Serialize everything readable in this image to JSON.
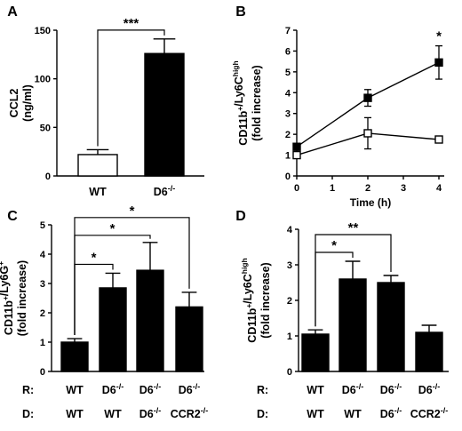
{
  "chart_data": [
    {
      "panel": "A",
      "type": "bar",
      "ylabel": "CCL2 (ng/ml)",
      "ylim": [
        0,
        150
      ],
      "yticks": [
        "0",
        "50",
        "100",
        "150"
      ],
      "categories": [
        "WT",
        "D6-/-"
      ],
      "values": [
        22,
        126
      ],
      "errors": [
        5,
        15
      ],
      "bar_colors": [
        "#ffffff",
        "#000000"
      ],
      "significance": [
        {
          "from": 0,
          "to": 1,
          "label": "***"
        }
      ]
    },
    {
      "panel": "B",
      "type": "line",
      "xlabel": "Time (h)",
      "ylabel": "CD11b+/Ly6Chigh (fold increase)",
      "xlim": [
        0,
        4
      ],
      "ylim": [
        0,
        7
      ],
      "xticks": [
        "0",
        "1",
        "2",
        "3",
        "4"
      ],
      "yticks": [
        "0",
        "1",
        "2",
        "3",
        "4",
        "5",
        "6",
        "7"
      ],
      "series": [
        {
          "marker": "filled-square",
          "x": [
            0,
            2,
            4
          ],
          "y": [
            1.4,
            3.75,
            5.45
          ],
          "err": [
            0,
            0.4,
            0.8
          ]
        },
        {
          "marker": "open-square",
          "x": [
            0,
            2,
            4
          ],
          "y": [
            1.0,
            2.05,
            1.75
          ],
          "err": [
            0,
            0.75,
            0.1
          ]
        }
      ],
      "annotations": [
        {
          "x": 4,
          "label": "*"
        }
      ]
    },
    {
      "panel": "C",
      "type": "bar",
      "ylabel": "CD11b+/Ly6G+ (fold increase)",
      "ylim": [
        0,
        5
      ],
      "yticks": [
        "0",
        "1",
        "2",
        "3",
        "4",
        "5"
      ],
      "values": [
        1.0,
        2.85,
        3.45,
        2.2
      ],
      "errors": [
        0.12,
        0.5,
        0.95,
        0.5
      ],
      "bar_colors": [
        "#000000",
        "#000000",
        "#000000",
        "#000000"
      ],
      "significance": [
        {
          "from": 0,
          "to": 1,
          "label": "*"
        },
        {
          "from": 0,
          "to": 2,
          "label": "*"
        },
        {
          "from": 0,
          "to": 3,
          "label": "*"
        }
      ],
      "row_labels": {
        "recipient": "R:",
        "donor": "D:"
      },
      "recipient": [
        "WT",
        "D6-/-",
        "D6-/-",
        "D6-/-"
      ],
      "donor": [
        "WT",
        "WT",
        "D6-/-",
        "CCR2-/-"
      ]
    },
    {
      "panel": "D",
      "type": "bar",
      "ylabel": "CD11b+/Ly6Chigh (fold increase)",
      "ylim": [
        0,
        4
      ],
      "yticks": [
        "0",
        "1",
        "2",
        "3",
        "4"
      ],
      "values": [
        1.05,
        2.6,
        2.5,
        1.1
      ],
      "errors": [
        0.12,
        0.5,
        0.2,
        0.2
      ],
      "bar_colors": [
        "#000000",
        "#000000",
        "#000000",
        "#000000"
      ],
      "significance": [
        {
          "from": 0,
          "to": 1,
          "label": "*"
        },
        {
          "from": 0,
          "to": 2,
          "label": "**"
        }
      ],
      "row_labels": {
        "recipient": "R:",
        "donor": "D:"
      },
      "recipient": [
        "WT",
        "D6-/-",
        "D6-/-",
        "D6-/-"
      ],
      "donor": [
        "WT",
        "WT",
        "D6-/-",
        "CCR2-/-"
      ]
    }
  ]
}
